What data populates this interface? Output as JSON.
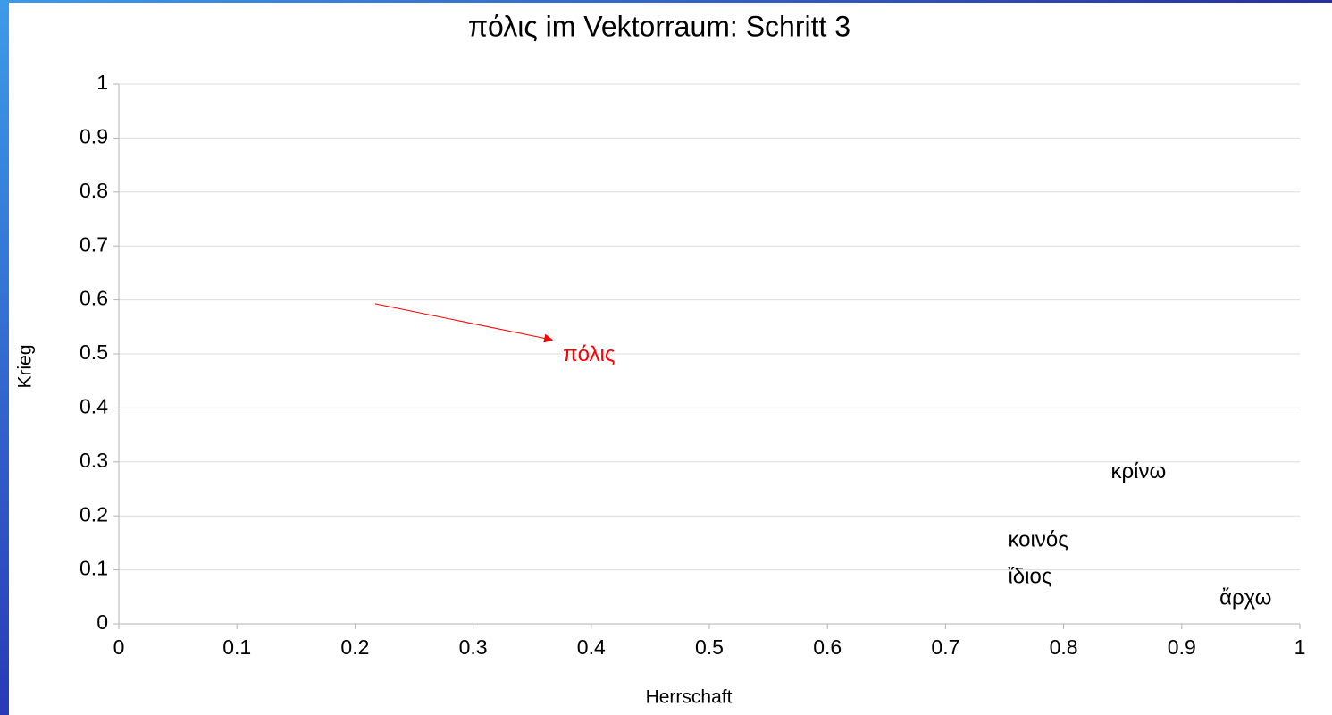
{
  "chart_data": {
    "type": "scatter",
    "title": "πόλις im Vektorraum: Schritt 3",
    "x_label": "Herrschaft",
    "y_label": "Krieg",
    "xlim": [
      0,
      1
    ],
    "xticks": [
      0,
      0.1,
      0.2,
      0.3,
      0.4,
      0.5,
      0.6,
      0.7,
      0.8,
      0.9,
      1
    ],
    "ylim": [
      0,
      1
    ],
    "yticks": [
      0,
      0.1,
      0.2,
      0.3,
      0.4,
      0.5,
      0.6,
      0.7,
      0.8,
      0.9,
      1
    ],
    "grid": true,
    "points": [
      {
        "label": "πόλις",
        "x": 0.376,
        "y": 0.497,
        "color": "#ff0000"
      },
      {
        "label": "κρίνω",
        "x": 0.84,
        "y": 0.28,
        "color": "#000000"
      },
      {
        "label": "κοινός",
        "x": 0.753,
        "y": 0.154,
        "color": "#000000"
      },
      {
        "label": "ἴδιος",
        "x": 0.753,
        "y": 0.086,
        "color": "#000000"
      },
      {
        "label": "ἄρχω",
        "x": 0.932,
        "y": 0.046,
        "color": "#000000"
      }
    ],
    "arrow": {
      "x": [
        0.217,
        0.367
      ],
      "y": [
        0.593,
        0.526
      ],
      "color": "#ff0000"
    }
  }
}
